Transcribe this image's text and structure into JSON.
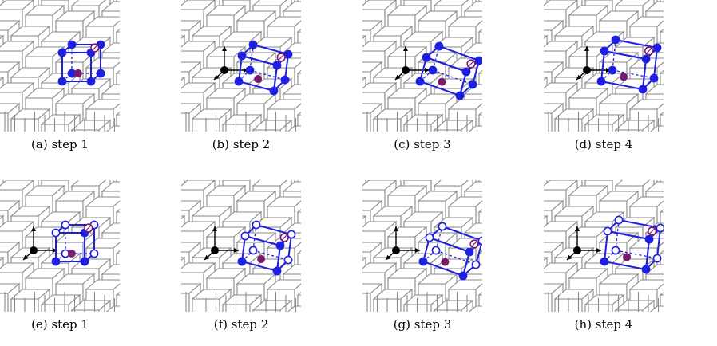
{
  "figure": {
    "panels": [
      {
        "caption": "(a) step 1",
        "row": 0,
        "col": 0,
        "variant": 0,
        "step": 1,
        "show_axes": false
      },
      {
        "caption": "(b) step 2",
        "row": 0,
        "col": 1,
        "variant": 0,
        "step": 2,
        "show_axes": true
      },
      {
        "caption": "(c) step 3",
        "row": 0,
        "col": 2,
        "variant": 0,
        "step": 3,
        "show_axes": true
      },
      {
        "caption": "(d) step 4",
        "row": 0,
        "col": 3,
        "variant": 0,
        "step": 4,
        "show_axes": true
      },
      {
        "caption": "(e) step 1",
        "row": 1,
        "col": 0,
        "variant": 1,
        "step": 1,
        "show_axes": true
      },
      {
        "caption": "(f) step 2",
        "row": 1,
        "col": 1,
        "variant": 1,
        "step": 2,
        "show_axes": true
      },
      {
        "caption": "(g) step 3",
        "row": 1,
        "col": 2,
        "variant": 1,
        "step": 3,
        "show_axes": true
      },
      {
        "caption": "(h) step 4",
        "row": 1,
        "col": 3,
        "variant": 1,
        "step": 4,
        "show_axes": true
      }
    ],
    "colors": {
      "grid": "#8a8a8a",
      "cell": "#1f1fe0",
      "center": "#7a1a6e",
      "axes": "#000000"
    }
  }
}
